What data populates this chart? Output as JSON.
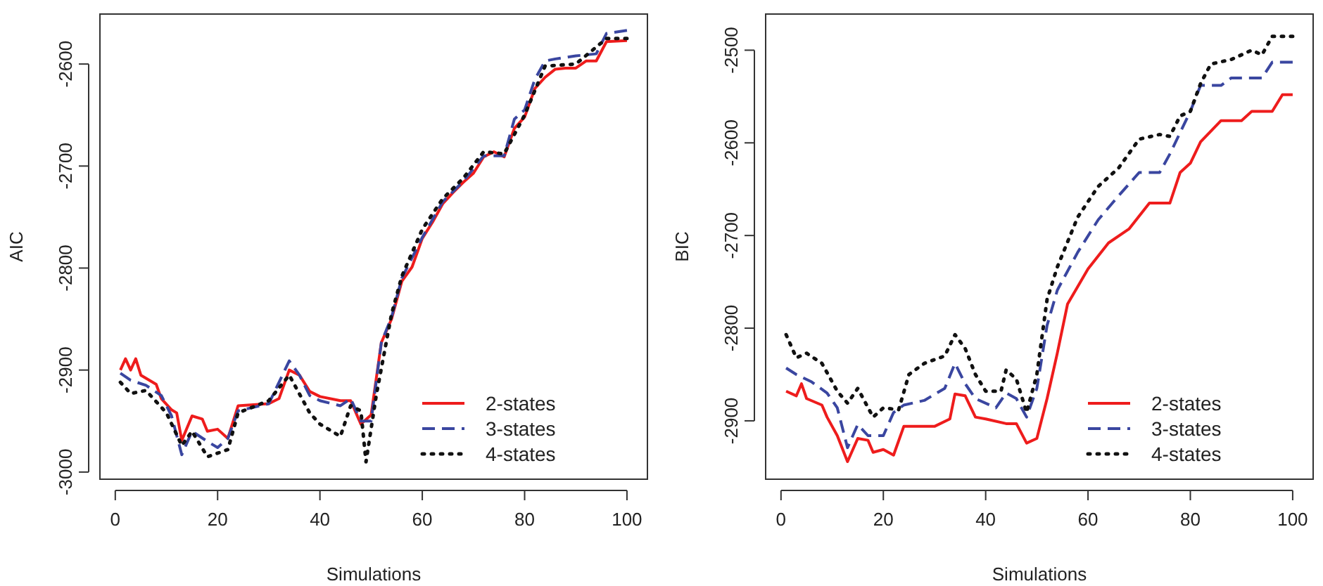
{
  "chart_data": [
    {
      "type": "line",
      "xlabel": "Simulations",
      "ylabel": "AIC",
      "xlim": [
        -3,
        104
      ],
      "ylim": [
        -3007,
        -2551
      ],
      "xticks": [
        0,
        20,
        40,
        60,
        80,
        100
      ],
      "yticks": [
        -3000,
        -2900,
        -2800,
        -2700,
        -2600
      ],
      "grid": false,
      "legend": "bottom right",
      "series": [
        {
          "name": "2-states",
          "color": "#ee1c1c",
          "line_style": "solid",
          "x": [
            1,
            2,
            3,
            4,
            5,
            8,
            9,
            11,
            12,
            13,
            15,
            17,
            18,
            20,
            22,
            24,
            30,
            32,
            34,
            36,
            38,
            40,
            44,
            46,
            48,
            50,
            52,
            54,
            56,
            58,
            60,
            62,
            64,
            66,
            68,
            70,
            72,
            74,
            76,
            78,
            80,
            82,
            84,
            86,
            88,
            90,
            92,
            94,
            96,
            100
          ],
          "values": [
            -2900,
            -2889,
            -2900,
            -2889,
            -2905,
            -2914,
            -2928,
            -2939,
            -2942,
            -2969,
            -2945,
            -2948,
            -2960,
            -2958,
            -2967,
            -2935,
            -2933,
            -2928,
            -2900,
            -2905,
            -2921,
            -2926,
            -2930,
            -2930,
            -2953,
            -2944,
            -2873,
            -2850,
            -2813,
            -2799,
            -2771,
            -2755,
            -2737,
            -2726,
            -2716,
            -2707,
            -2691,
            -2686,
            -2691,
            -2663,
            -2652,
            -2624,
            -2613,
            -2605,
            -2604,
            -2604,
            -2597,
            -2597,
            -2578,
            -2577
          ]
        },
        {
          "name": "3-states",
          "color": "#3a46a0",
          "line_style": "dashed",
          "x": [
            1,
            3,
            6,
            9,
            11,
            13,
            15,
            18,
            20,
            22,
            24,
            30,
            34,
            36,
            38,
            40,
            44,
            46,
            48,
            50,
            52,
            54,
            56,
            60,
            64,
            68,
            72,
            76,
            78,
            80,
            82,
            84,
            86,
            90,
            94,
            96,
            100
          ],
          "values": [
            -2903,
            -2910,
            -2915,
            -2925,
            -2945,
            -2983,
            -2960,
            -2970,
            -2976,
            -2967,
            -2940,
            -2933,
            -2891,
            -2905,
            -2925,
            -2930,
            -2935,
            -2928,
            -2950,
            -2950,
            -2873,
            -2848,
            -2810,
            -2770,
            -2735,
            -2715,
            -2690,
            -2690,
            -2654,
            -2645,
            -2615,
            -2597,
            -2595,
            -2592,
            -2590,
            -2570,
            -2567
          ]
        },
        {
          "name": "4-states",
          "color": "#111111",
          "line_style": "dotted",
          "x": [
            1,
            3,
            6,
            10,
            13,
            15,
            18,
            22,
            24,
            30,
            34,
            38,
            40,
            44,
            46,
            48,
            49,
            51,
            54,
            56,
            60,
            64,
            68,
            72,
            76,
            80,
            84,
            90,
            96,
            100
          ],
          "values": [
            -2912,
            -2923,
            -2920,
            -2942,
            -2974,
            -2960,
            -2985,
            -2978,
            -2942,
            -2930,
            -2905,
            -2942,
            -2953,
            -2965,
            -2935,
            -2940,
            -2990,
            -2925,
            -2845,
            -2808,
            -2762,
            -2732,
            -2712,
            -2686,
            -2688,
            -2650,
            -2602,
            -2600,
            -2575,
            -2575
          ]
        }
      ]
    },
    {
      "type": "line",
      "xlabel": "Simulations",
      "ylabel": "BIC",
      "xlim": [
        -3,
        104
      ],
      "ylim": [
        -2963,
        -2461
      ],
      "xticks": [
        0,
        20,
        40,
        60,
        80,
        100
      ],
      "yticks": [
        -2900,
        -2800,
        -2700,
        -2600,
        -2500
      ],
      "grid": false,
      "legend": "bottom right",
      "series": [
        {
          "name": "2-states",
          "color": "#ee1c1c",
          "line_style": "solid",
          "x": [
            1,
            3,
            4,
            5,
            8,
            9,
            11,
            13,
            15,
            17,
            18,
            20,
            22,
            24,
            30,
            33,
            34,
            36,
            38,
            40,
            44,
            46,
            48,
            50,
            52,
            54,
            56,
            60,
            64,
            68,
            72,
            76,
            78,
            80,
            82,
            86,
            90,
            92,
            96,
            98,
            100
          ],
          "values": [
            -2868,
            -2873,
            -2860,
            -2876,
            -2883,
            -2896,
            -2916,
            -2944,
            -2919,
            -2921,
            -2934,
            -2931,
            -2937,
            -2906,
            -2906,
            -2898,
            -2871,
            -2873,
            -2896,
            -2898,
            -2903,
            -2903,
            -2924,
            -2919,
            -2876,
            -2827,
            -2774,
            -2736,
            -2708,
            -2693,
            -2665,
            -2665,
            -2632,
            -2622,
            -2599,
            -2576,
            -2576,
            -2566,
            -2566,
            -2548,
            -2548
          ]
        },
        {
          "name": "3-states",
          "color": "#3a46a0",
          "line_style": "dashed",
          "x": [
            1,
            3,
            6,
            9,
            11,
            13,
            15,
            17,
            20,
            22,
            24,
            28,
            32,
            34,
            36,
            38,
            42,
            44,
            46,
            48,
            50,
            52,
            54,
            58,
            62,
            66,
            70,
            74,
            76,
            78,
            80,
            82,
            86,
            88,
            94,
            96,
            100
          ],
          "values": [
            -2843,
            -2850,
            -2858,
            -2870,
            -2886,
            -2929,
            -2904,
            -2916,
            -2916,
            -2891,
            -2883,
            -2878,
            -2865,
            -2838,
            -2860,
            -2876,
            -2886,
            -2870,
            -2876,
            -2896,
            -2865,
            -2797,
            -2759,
            -2718,
            -2683,
            -2657,
            -2632,
            -2632,
            -2612,
            -2589,
            -2566,
            -2538,
            -2538,
            -2530,
            -2530,
            -2513,
            -2513
          ]
        },
        {
          "name": "4-states",
          "color": "#111111",
          "line_style": "dotted",
          "x": [
            1,
            3,
            5,
            8,
            11,
            13,
            15,
            18,
            20,
            23,
            25,
            28,
            32,
            34,
            36,
            38,
            40,
            43,
            44,
            46,
            48,
            50,
            52,
            54,
            58,
            62,
            66,
            70,
            74,
            76,
            78,
            80,
            82,
            84,
            88,
            92,
            94,
            96,
            100
          ],
          "values": [
            -2807,
            -2832,
            -2827,
            -2838,
            -2868,
            -2881,
            -2865,
            -2896,
            -2886,
            -2888,
            -2850,
            -2838,
            -2830,
            -2807,
            -2822,
            -2850,
            -2868,
            -2868,
            -2845,
            -2855,
            -2891,
            -2850,
            -2769,
            -2734,
            -2680,
            -2647,
            -2627,
            -2596,
            -2591,
            -2593,
            -2571,
            -2566,
            -2536,
            -2515,
            -2510,
            -2500,
            -2505,
            -2485,
            -2485
          ]
        }
      ]
    }
  ]
}
